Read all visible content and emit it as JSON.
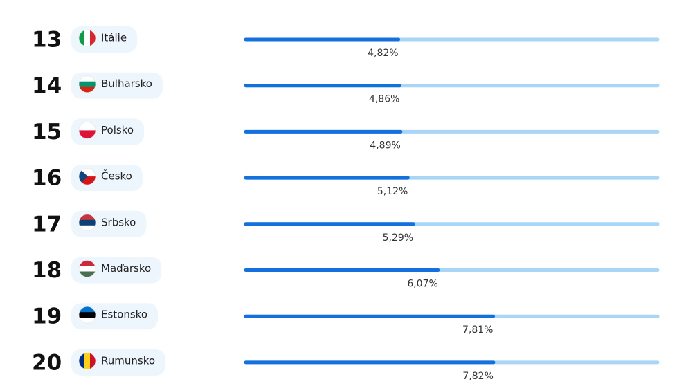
{
  "chart_data": {
    "type": "bar",
    "ranks": [
      13,
      14,
      15,
      16,
      17,
      18,
      19,
      20
    ],
    "categories": [
      "Itálie",
      "Bulharsko",
      "Polsko",
      "Česko",
      "Srbsko",
      "Maďarsko",
      "Estonsko",
      "Rumunsko"
    ],
    "values": [
      4.82,
      4.86,
      4.89,
      5.12,
      5.29,
      6.07,
      7.81,
      7.82
    ],
    "value_labels": [
      "4,82%",
      "4,86%",
      "4,89%",
      "5,12%",
      "5,29%",
      "6,07%",
      "7,81%",
      "7,82%"
    ],
    "xlim": [
      0,
      13
    ],
    "color": "#1470dc",
    "track_color": "#a9d5f6"
  }
}
